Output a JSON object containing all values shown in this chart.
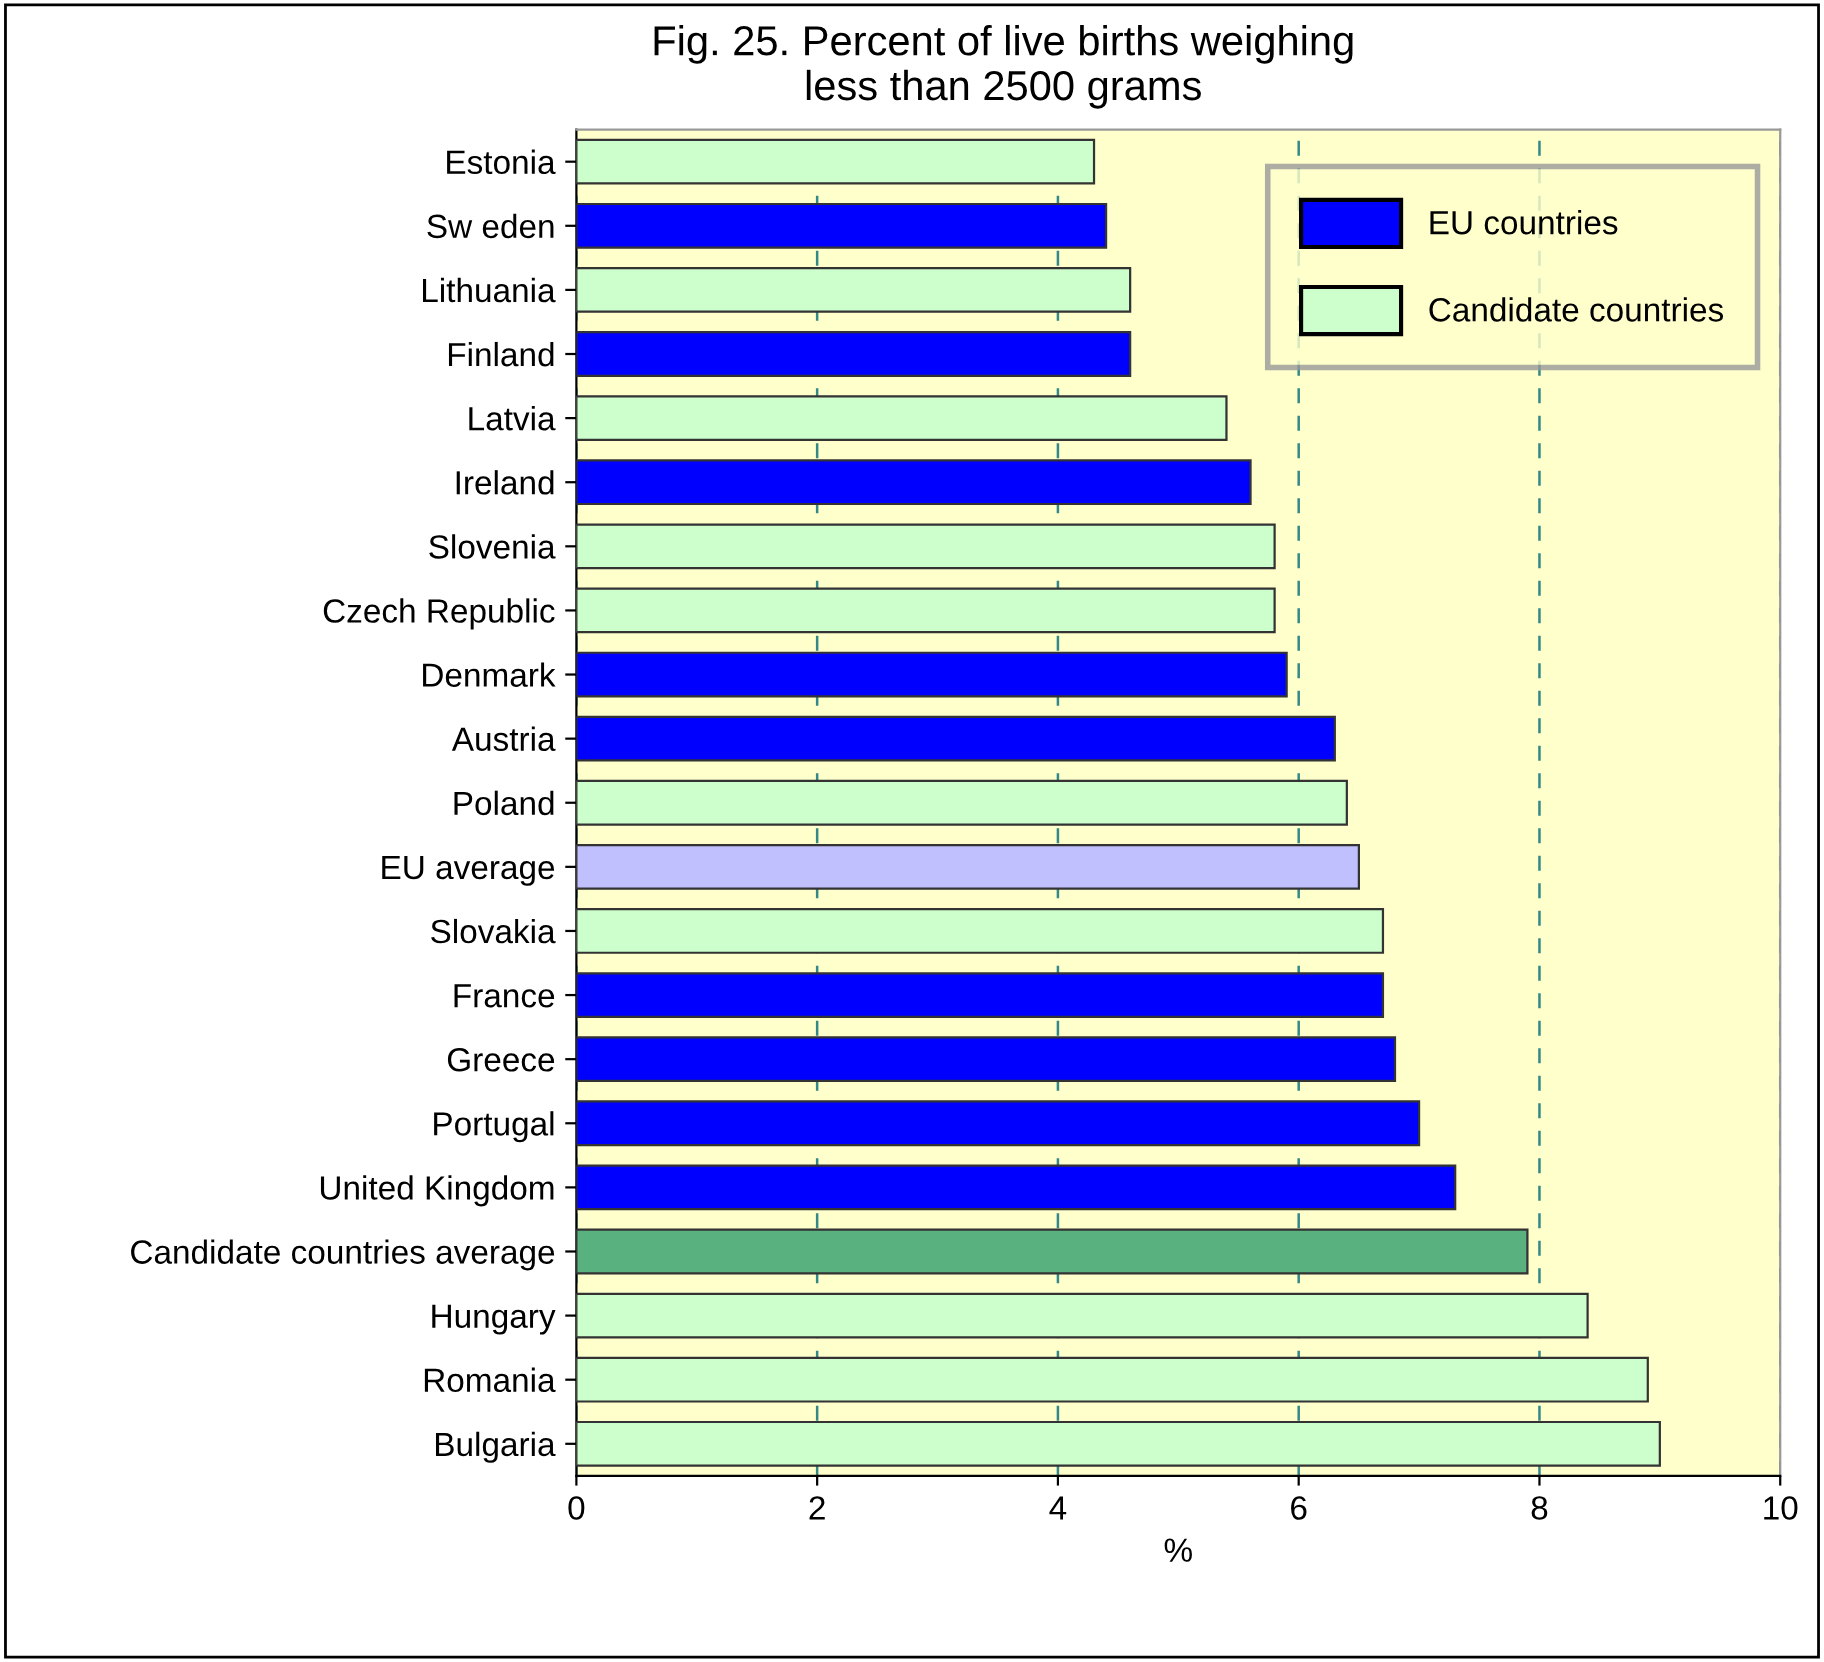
{
  "chart_data": {
    "type": "bar",
    "orientation": "horizontal",
    "title": "Fig. 25. Percent of live births weighing\nless than 2500 grams",
    "xlabel": "%",
    "categories": [
      "Estonia",
      "Sw eden",
      "Lithuania",
      "Finland",
      "Latvia",
      "Ireland",
      "Slovenia",
      "Czech Republic",
      "Denmark",
      "Austria",
      "Poland",
      "EU average",
      "Slovakia",
      "France",
      "Greece",
      "Portugal",
      "United Kingdom",
      "Candidate countries average",
      "Hungary",
      "Romania",
      "Bulgaria"
    ],
    "series": [
      {
        "name": "EU countries",
        "color": "#0000ff",
        "values": [
          null,
          4.4,
          null,
          4.6,
          null,
          5.6,
          null,
          null,
          5.9,
          6.3,
          null,
          null,
          null,
          6.7,
          6.8,
          7.0,
          7.3,
          null,
          null,
          null,
          null
        ]
      },
      {
        "name": "Candidate countries",
        "color": "#ccffcc",
        "values": [
          4.3,
          null,
          4.6,
          null,
          5.4,
          null,
          5.8,
          5.8,
          null,
          null,
          6.4,
          null,
          6.7,
          null,
          null,
          null,
          null,
          null,
          8.4,
          8.9,
          9.0
        ]
      },
      {
        "color": "#c0c0ff",
        "values": [
          null,
          null,
          null,
          null,
          null,
          null,
          null,
          null,
          null,
          null,
          null,
          6.5,
          null,
          null,
          null,
          null,
          null,
          null,
          null,
          null,
          null
        ]
      },
      {
        "color": "#5ab180",
        "values": [
          null,
          null,
          null,
          null,
          null,
          null,
          null,
          null,
          null,
          null,
          null,
          null,
          null,
          null,
          null,
          null,
          null,
          7.9,
          null,
          null,
          null
        ]
      }
    ],
    "xlim": [
      0,
      10
    ],
    "xticks": [
      0,
      2,
      4,
      6,
      8,
      10
    ],
    "grid": "x",
    "legend": "top right"
  }
}
